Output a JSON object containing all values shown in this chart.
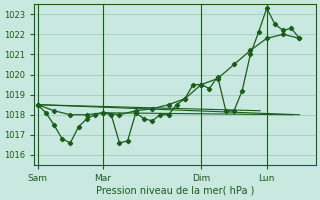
{
  "bg_color": "#c8e8e0",
  "grid_color": "#9dc8bc",
  "line_color": "#1a5c1a",
  "xlabel": "Pression niveau de la mer( hPa )",
  "ylim": [
    1015.5,
    1023.5
  ],
  "yticks": [
    1016,
    1017,
    1018,
    1019,
    1020,
    1021,
    1022,
    1023
  ],
  "xtick_labels": [
    "Sam",
    "Mar",
    "Dim",
    "Lun"
  ],
  "xtick_positions": [
    0,
    2,
    5,
    7
  ],
  "vline_positions": [
    0,
    2,
    5,
    7
  ],
  "xlim": [
    -0.1,
    8.5
  ],
  "series_wavy_x": [
    0.0,
    0.25,
    0.5,
    0.75,
    1.0,
    1.25,
    1.5,
    1.75,
    2.0,
    2.25,
    2.5,
    2.75,
    3.0,
    3.25,
    3.5,
    3.75,
    4.0,
    4.25,
    4.5,
    4.75,
    5.0,
    5.25,
    5.5,
    5.75,
    6.0,
    6.25,
    6.5,
    6.75,
    7.0,
    7.25,
    7.5,
    7.75,
    8.0
  ],
  "series_wavy_y": [
    1018.5,
    1018.1,
    1017.5,
    1016.8,
    1016.6,
    1017.4,
    1017.8,
    1018.0,
    1018.1,
    1018.0,
    1016.6,
    1016.7,
    1018.1,
    1017.8,
    1017.7,
    1018.0,
    1018.0,
    1018.5,
    1018.8,
    1019.5,
    1019.5,
    1019.3,
    1019.9,
    1018.2,
    1018.2,
    1019.2,
    1021.0,
    1022.1,
    1023.3,
    1022.5,
    1022.2,
    1022.3,
    1021.8
  ],
  "series_smooth_x": [
    0.0,
    0.5,
    1.0,
    1.5,
    2.0,
    2.5,
    3.0,
    3.5,
    4.0,
    4.5,
    5.0,
    5.5,
    6.0,
    6.5,
    7.0,
    7.5,
    8.0
  ],
  "series_smooth_y": [
    1018.5,
    1018.2,
    1018.0,
    1018.0,
    1018.1,
    1018.0,
    1018.2,
    1018.3,
    1018.5,
    1018.8,
    1019.5,
    1019.8,
    1020.5,
    1021.2,
    1021.8,
    1022.0,
    1021.8
  ],
  "flat_line1_x": [
    0.0,
    6.8
  ],
  "flat_line1_y": [
    1018.5,
    1018.2
  ],
  "flat_line2_x": [
    0.0,
    8.0
  ],
  "flat_line2_y": [
    1018.5,
    1018.0
  ],
  "flat_line3_x": [
    2.0,
    7.8
  ],
  "flat_line3_y": [
    1018.1,
    1018.0
  ]
}
